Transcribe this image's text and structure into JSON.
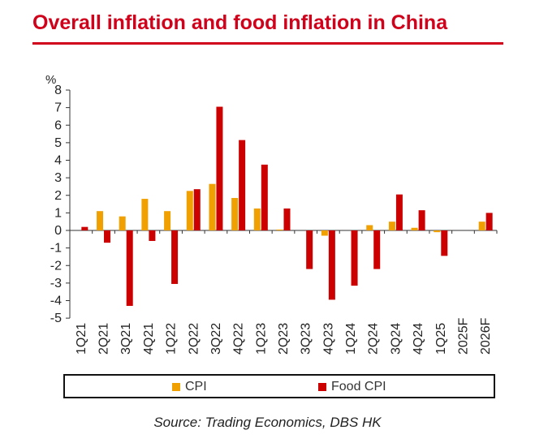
{
  "title": "Overall inflation and food inflation in China",
  "source": "Source: Trading Economics, DBS HK",
  "colors": {
    "title": "#d0021b",
    "cpi": "#f0a000",
    "food": "#cc0000"
  },
  "chart_data": {
    "type": "bar",
    "unit_label": "%",
    "categories": [
      "1Q21",
      "2Q21",
      "3Q21",
      "4Q21",
      "1Q22",
      "2Q22",
      "3Q22",
      "4Q22",
      "1Q23",
      "2Q23",
      "3Q23",
      "4Q23",
      "1Q24",
      "2Q24",
      "3Q24",
      "4Q24",
      "1Q25",
      "2025F",
      "2026F"
    ],
    "series": [
      {
        "name": "CPI",
        "values": [
          0,
          1.1,
          0.8,
          1.8,
          1.1,
          2.25,
          2.65,
          1.85,
          1.25,
          0.05,
          0,
          -0.3,
          0,
          0.3,
          0.5,
          0.15,
          -0.1,
          0,
          0.5
        ]
      },
      {
        "name": "Food CPI",
        "values": [
          0.2,
          -0.7,
          -4.3,
          -0.6,
          -3.05,
          2.35,
          7.05,
          5.15,
          3.75,
          1.25,
          -2.2,
          -3.95,
          -3.15,
          -2.2,
          2.05,
          1.15,
          -1.45,
          0,
          1.0
        ]
      }
    ],
    "yticks": [
      8,
      7,
      6,
      5,
      4,
      3,
      2,
      1,
      0,
      -1,
      -2,
      -3,
      -4,
      -5
    ],
    "ylim": [
      -5,
      8
    ],
    "legend_position": "bottom",
    "grid": false
  }
}
